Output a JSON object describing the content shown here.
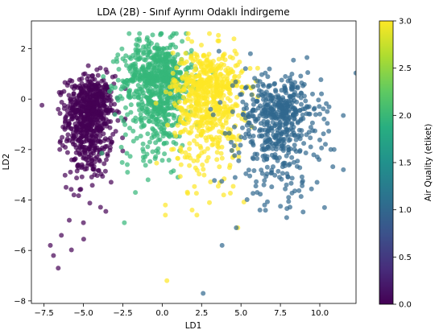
{
  "chart_data": {
    "type": "scatter",
    "title": "LDA (2B) - Sınıf Ayrımı Odaklı İndirgeme",
    "xlabel": "LD1",
    "ylabel": "LD2",
    "xlim": [
      -8.3,
      12.3
    ],
    "ylim": [
      -8.1,
      3.1
    ],
    "xticks": [
      -7.5,
      -5.0,
      -2.5,
      0.0,
      2.5,
      5.0,
      7.5,
      10.0
    ],
    "xtick_labels": [
      "−7.5",
      "−5.0",
      "−2.5",
      "0.0",
      "2.5",
      "5.0",
      "7.5",
      "10.0"
    ],
    "yticks": [
      2,
      0,
      -2,
      -4,
      -6,
      -8
    ],
    "ytick_labels": [
      "2",
      "0",
      "−2",
      "−4",
      "−6",
      "−8"
    ],
    "grid": false,
    "colorbar": {
      "label": "Air Quality (etiket)",
      "colormap": "viridis",
      "range": [
        0.0,
        3.0
      ],
      "ticks": [
        0.0,
        0.5,
        1.0,
        1.5,
        2.0,
        2.5,
        3.0
      ],
      "tick_labels": [
        "0.0",
        "0.5",
        "1.0",
        "1.5",
        "2.0",
        "2.5",
        "3.0"
      ]
    },
    "series": [
      {
        "label": 0,
        "color": "#440154",
        "center": [
          -4.6,
          -0.6
        ],
        "spread": [
          0.75,
          0.95
        ],
        "outliers": [
          [
            -7.1,
            -5.8
          ],
          [
            -6.9,
            -6.2
          ],
          [
            -6.6,
            -6.7
          ],
          [
            -6.4,
            -5.4
          ],
          [
            -5.9,
            -4.8
          ],
          [
            -5.6,
            -3.8
          ],
          [
            -6.1,
            -3.5
          ],
          [
            -5.0,
            -4.9
          ],
          [
            -6.5,
            -2.0
          ],
          [
            -6.6,
            -0.4
          ]
        ]
      },
      {
        "label": 2,
        "color": "#35b779",
        "center": [
          -0.3,
          0.7
        ],
        "spread": [
          1.1,
          1.0
        ],
        "outliers": [
          [
            -2.1,
            2.6
          ],
          [
            -2.4,
            -4.9
          ],
          [
            -1.7,
            -3.7
          ],
          [
            -2.2,
            -2.9
          ],
          [
            -1.2,
            -2.3
          ],
          [
            -0.9,
            -3.2
          ],
          [
            1.0,
            -3.1
          ],
          [
            -2.6,
            0.4
          ]
        ]
      },
      {
        "label": 3,
        "color": "#fde725",
        "center": [
          2.9,
          0.2
        ],
        "spread": [
          1.1,
          1.1
        ],
        "outliers": [
          [
            0.3,
            -7.2
          ],
          [
            0.2,
            -4.2
          ],
          [
            0.2,
            -4.6
          ],
          [
            1.9,
            -4.4
          ],
          [
            2.2,
            -4.6
          ],
          [
            4.8,
            -5.1
          ],
          [
            3.9,
            -3.8
          ],
          [
            1.2,
            -2.6
          ],
          [
            0.6,
            -2.0
          ]
        ]
      },
      {
        "label": 1,
        "color": "#31688e",
        "center": [
          7.4,
          -0.8
        ],
        "spread": [
          1.35,
          1.05
        ],
        "outliers": [
          [
            2.6,
            -7.7
          ],
          [
            3.8,
            -5.8
          ],
          [
            4.7,
            -5.1
          ],
          [
            7.9,
            -4.7
          ],
          [
            6.5,
            -4.2
          ],
          [
            6.2,
            -4.4
          ],
          [
            10.3,
            -4.3
          ],
          [
            11.5,
            -2.8
          ],
          [
            10.7,
            -2.0
          ],
          [
            3.6,
            1.9
          ],
          [
            5.6,
            1.8
          ]
        ]
      }
    ]
  }
}
